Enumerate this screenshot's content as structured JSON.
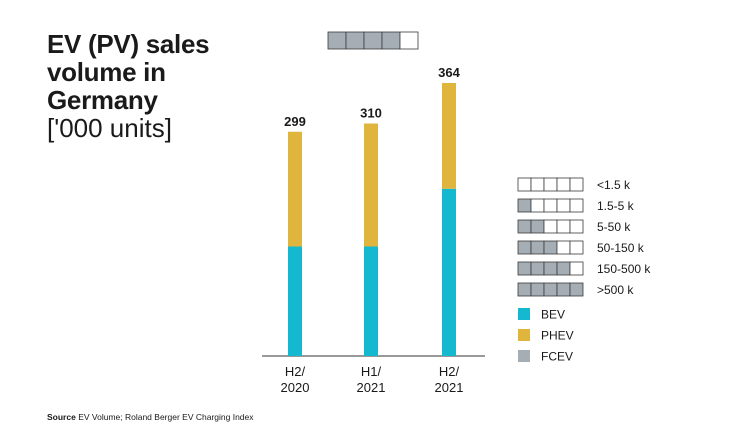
{
  "title": {
    "lines": [
      "EV (PV) sales",
      "volume in",
      "Germany"
    ],
    "unit": "['000 units]"
  },
  "chart_data": {
    "type": "bar",
    "stacked": true,
    "categories": [
      [
        "H2/",
        "2020"
      ],
      [
        "H1/",
        "2021"
      ],
      [
        "H2/",
        "2021"
      ]
    ],
    "totals": [
      299,
      310,
      364
    ],
    "series": [
      {
        "name": "BEV",
        "color": "#14b8cf",
        "values": [
          146,
          146,
          223
        ]
      },
      {
        "name": "PHEV",
        "color": "#e0b53e",
        "values": [
          153,
          164,
          141
        ]
      },
      {
        "name": "FCEV",
        "color": "#a5adb5",
        "values": [
          0,
          0,
          0
        ]
      }
    ],
    "ylim": [
      0,
      400
    ],
    "grid": false,
    "legend_position": "right"
  },
  "country_indicator": {
    "filled_cells": 4,
    "total_cells": 5
  },
  "scale_legend": [
    {
      "label": "<1.5 k",
      "filled": 0
    },
    {
      "label": "1.5-5 k",
      "filled": 1
    },
    {
      "label": "5-50 k",
      "filled": 2
    },
    {
      "label": "50-150 k",
      "filled": 3
    },
    {
      "label": "150-500 k",
      "filled": 4
    },
    {
      "label": ">500 k",
      "filled": 5
    }
  ],
  "source": {
    "label": "Source",
    "text": "EV Volume; Roland Berger EV Charging Index"
  },
  "colors": {
    "cell_fill": "#a5adb5",
    "cell_stroke": "#3a3a3a",
    "axis": "#333333"
  }
}
